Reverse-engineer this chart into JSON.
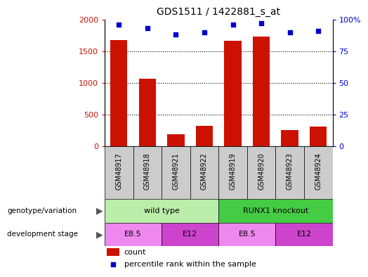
{
  "title": "GDS1511 / 1422881_s_at",
  "samples": [
    "GSM48917",
    "GSM48918",
    "GSM48921",
    "GSM48922",
    "GSM48919",
    "GSM48920",
    "GSM48923",
    "GSM48924"
  ],
  "counts": [
    1680,
    1060,
    190,
    320,
    1660,
    1730,
    255,
    310
  ],
  "percentiles": [
    96,
    93,
    88,
    90,
    96,
    97,
    90,
    91
  ],
  "ylim_left": [
    0,
    2000
  ],
  "ylim_right": [
    0,
    100
  ],
  "yticks_left": [
    0,
    500,
    1000,
    1500,
    2000
  ],
  "ytick_labels_left": [
    "0",
    "500",
    "1000",
    "1500",
    "2000"
  ],
  "yticks_right": [
    0,
    25,
    50,
    75,
    100
  ],
  "ytick_labels_right": [
    "0",
    "25",
    "50",
    "75",
    "100%"
  ],
  "bar_color": "#cc1100",
  "dot_color": "#0000cc",
  "genotype_groups": [
    {
      "label": "wild type",
      "start": 0,
      "end": 4,
      "color": "#bbeeaa"
    },
    {
      "label": "RUNX1 knockout",
      "start": 4,
      "end": 8,
      "color": "#44cc44"
    }
  ],
  "dev_stage_groups": [
    {
      "label": "E8.5",
      "start": 0,
      "end": 2,
      "color": "#ee88ee"
    },
    {
      "label": "E12",
      "start": 2,
      "end": 4,
      "color": "#cc44cc"
    },
    {
      "label": "E8.5",
      "start": 4,
      "end": 6,
      "color": "#ee88ee"
    },
    {
      "label": "E12",
      "start": 6,
      "end": 8,
      "color": "#cc44cc"
    }
  ],
  "left_axis_color": "#cc1100",
  "right_axis_color": "#0000cc",
  "grid_color": "black",
  "sample_bg_color": "#cccccc",
  "legend_count_color": "#cc1100",
  "legend_dot_color": "#0000cc"
}
